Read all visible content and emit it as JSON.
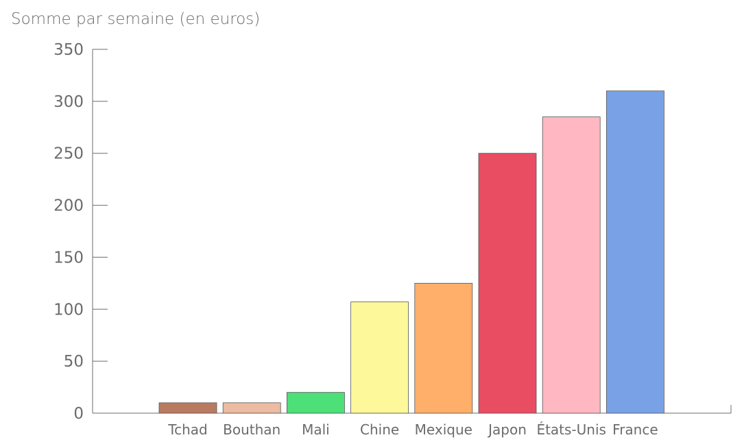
{
  "chart_data": {
    "type": "bar",
    "title": "",
    "ylabel": "Somme par semaine (en euros)",
    "xlabel": "",
    "ylim": [
      0,
      350
    ],
    "yticks": [
      0,
      50,
      100,
      150,
      200,
      250,
      300,
      350
    ],
    "categories": [
      "Tchad",
      "Bouthan",
      "Mali",
      "Chine",
      "Mexique",
      "Japon",
      "États-Unis",
      "France"
    ],
    "values": [
      10,
      10,
      20,
      107,
      125,
      250,
      285,
      310
    ],
    "colors": [
      "#b97b60",
      "#ebbba2",
      "#4ddf78",
      "#fdf89a",
      "#ffaf6a",
      "#e84d62",
      "#ffb8c2",
      "#79a2e6"
    ],
    "grid": false,
    "legend": "none"
  }
}
